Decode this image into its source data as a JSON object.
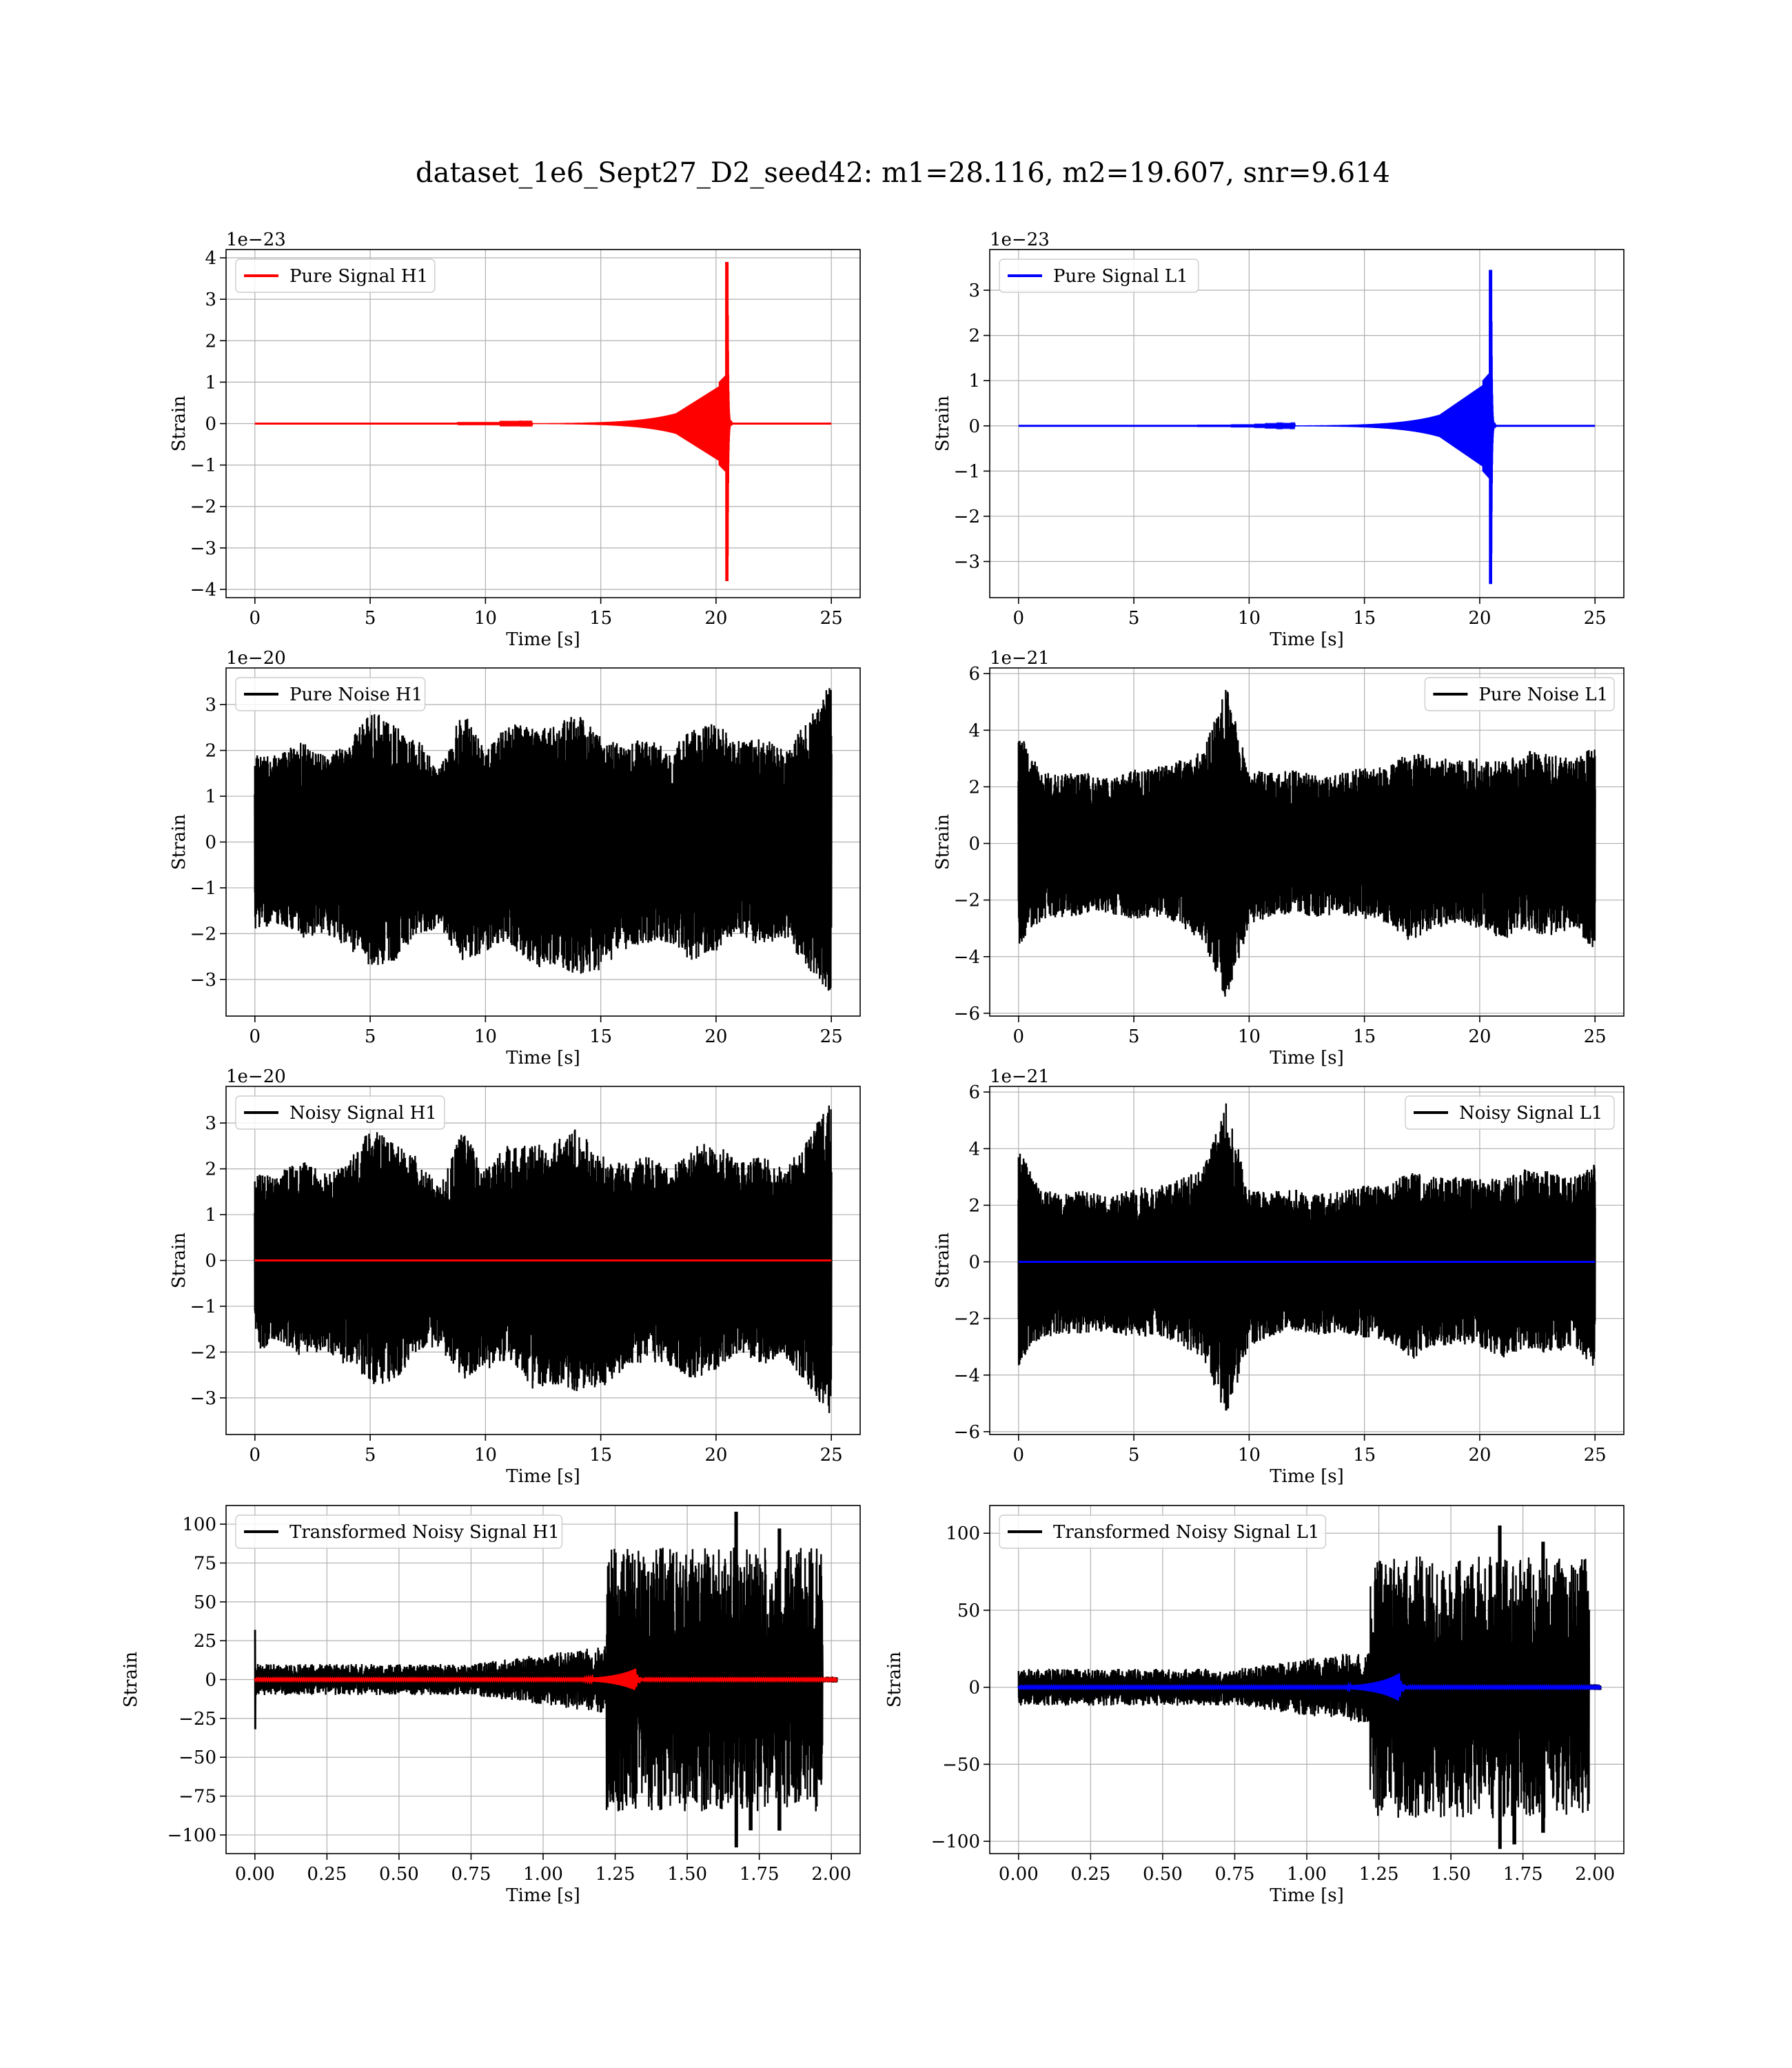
{
  "figure": {
    "title": "dataset_1e6_Sept27_D2_seed42: m1=28.116, m2=19.607, snr=9.614"
  },
  "colors": {
    "h1_signal": "#ff0000",
    "l1_signal": "#0000ff",
    "noise": "#000000",
    "grid": "#b0b0b0"
  },
  "chart_data": [
    {
      "id": "pure_signal_h1",
      "type": "line",
      "kind": "chirp",
      "row": 0,
      "col": 0,
      "title": "",
      "xlabel": "Time [s]",
      "ylabel": "Strain",
      "offset_text": "1e−23",
      "xlim": [
        -1.25,
        26.25
      ],
      "ylim": [
        -4.2,
        4.2
      ],
      "xticks": [
        0,
        5,
        10,
        15,
        20,
        25
      ],
      "yticks": [
        -4,
        -3,
        -2,
        -1,
        0,
        1,
        2,
        3,
        4
      ],
      "legend_position": "upper left",
      "series": [
        {
          "name": "Pure Signal H1",
          "color": "#ff0000",
          "x_range": [
            0,
            25
          ],
          "merger_time": 20.5,
          "peak_amplitude": 3.9,
          "trough_amplitude": -3.8
        }
      ]
    },
    {
      "id": "pure_signal_l1",
      "type": "line",
      "kind": "chirp",
      "row": 0,
      "col": 1,
      "title": "",
      "xlabel": "Time [s]",
      "ylabel": "Strain",
      "offset_text": "1e−23",
      "xlim": [
        -1.25,
        26.25
      ],
      "ylim": [
        -3.8,
        3.9
      ],
      "xticks": [
        0,
        5,
        10,
        15,
        20,
        25
      ],
      "yticks": [
        -3,
        -2,
        -1,
        0,
        1,
        2,
        3
      ],
      "legend_position": "upper left",
      "series": [
        {
          "name": "Pure Signal L1",
          "color": "#0000ff",
          "x_range": [
            0,
            25
          ],
          "merger_time": 20.5,
          "peak_amplitude": 3.45,
          "trough_amplitude": -3.5
        }
      ]
    },
    {
      "id": "pure_noise_h1",
      "type": "line",
      "kind": "noise",
      "row": 1,
      "col": 0,
      "title": "",
      "xlabel": "Time [s]",
      "ylabel": "Strain",
      "offset_text": "1e−20",
      "xlim": [
        -1.25,
        26.25
      ],
      "ylim": [
        -3.8,
        3.8
      ],
      "xticks": [
        0,
        5,
        10,
        15,
        20,
        25
      ],
      "yticks": [
        -3,
        -2,
        -1,
        0,
        1,
        2,
        3
      ],
      "legend_position": "upper left",
      "series": [
        {
          "name": "Pure Noise H1",
          "color": "#000000",
          "x_range": [
            0,
            25
          ],
          "min": -3.5,
          "max": 3.5,
          "envelope_max": [
            1.9,
            1.9,
            2.2,
            1.9,
            2.1,
            2.9,
            2.6,
            2.3,
            1.6,
            2.9,
            2.0,
            2.6,
            2.5,
            2.6,
            2.9,
            2.3,
            2.1,
            2.3,
            2.0,
            2.5,
            2.6,
            2.2,
            2.3,
            2.0,
            2.7,
            3.5
          ],
          "envelope_min": [
            -2.0,
            -1.8,
            -2.1,
            -2.0,
            -2.3,
            -2.7,
            -2.7,
            -2.0,
            -1.9,
            -2.6,
            -2.4,
            -2.2,
            -2.8,
            -2.7,
            -2.9,
            -2.8,
            -2.4,
            -2.2,
            -2.3,
            -2.6,
            -2.4,
            -2.0,
            -2.3,
            -2.1,
            -2.8,
            -3.4
          ]
        }
      ]
    },
    {
      "id": "pure_noise_l1",
      "type": "line",
      "kind": "noise",
      "row": 1,
      "col": 1,
      "title": "",
      "xlabel": "Time [s]",
      "ylabel": "Strain",
      "offset_text": "1e−21",
      "xlim": [
        -1.25,
        26.25
      ],
      "ylim": [
        -6.1,
        6.2
      ],
      "xticks": [
        0,
        5,
        10,
        15,
        20,
        25
      ],
      "yticks": [
        -6,
        -4,
        -2,
        0,
        2,
        4,
        6
      ],
      "legend_position": "upper right",
      "series": [
        {
          "name": "Pure Noise L1",
          "color": "#000000",
          "x_range": [
            0,
            25
          ],
          "min": -5.5,
          "max": 5.6,
          "envelope_max": [
            4.0,
            2.5,
            2.5,
            2.5,
            2.3,
            2.6,
            2.7,
            3.0,
            3.3,
            5.6,
            2.6,
            2.5,
            2.6,
            2.4,
            2.5,
            2.7,
            2.7,
            3.3,
            3.0,
            3.0,
            3.0,
            2.9,
            3.3,
            3.2,
            3.0,
            3.5
          ],
          "envelope_min": [
            -3.7,
            -2.7,
            -2.6,
            -2.5,
            -2.5,
            -2.7,
            -2.6,
            -2.9,
            -3.5,
            -5.5,
            -3.0,
            -2.6,
            -2.5,
            -2.6,
            -2.5,
            -2.7,
            -2.8,
            -3.5,
            -3.0,
            -2.9,
            -3.0,
            -3.4,
            -3.1,
            -3.3,
            -3.0,
            -3.8
          ]
        }
      ]
    },
    {
      "id": "noisy_signal_h1",
      "type": "line",
      "kind": "noise_with_line",
      "row": 2,
      "col": 0,
      "title": "",
      "xlabel": "Time [s]",
      "ylabel": "Strain",
      "offset_text": "1e−20",
      "xlim": [
        -1.25,
        26.25
      ],
      "ylim": [
        -3.8,
        3.8
      ],
      "xticks": [
        0,
        5,
        10,
        15,
        20,
        25
      ],
      "yticks": [
        -3,
        -2,
        -1,
        0,
        1,
        2,
        3
      ],
      "legend_position": "upper left",
      "series": [
        {
          "name": "Noisy Signal H1",
          "color": "#000000",
          "x_range": [
            0,
            25
          ],
          "min": -3.5,
          "max": 3.5,
          "envelope_max": [
            1.9,
            1.9,
            2.2,
            1.9,
            2.1,
            2.9,
            2.6,
            2.3,
            1.6,
            2.9,
            2.0,
            2.6,
            2.5,
            2.6,
            2.9,
            2.3,
            2.1,
            2.3,
            2.0,
            2.5,
            2.6,
            2.2,
            2.3,
            2.0,
            2.7,
            3.5
          ],
          "envelope_min": [
            -2.0,
            -1.8,
            -2.1,
            -2.0,
            -2.3,
            -2.7,
            -2.7,
            -2.0,
            -1.9,
            -2.6,
            -2.4,
            -2.2,
            -2.8,
            -2.7,
            -2.9,
            -2.8,
            -2.4,
            -2.2,
            -2.3,
            -2.6,
            -2.4,
            -2.0,
            -2.3,
            -2.1,
            -2.8,
            -3.4
          ]
        },
        {
          "name": "",
          "color": "#ff0000",
          "x_range": [
            0,
            25
          ],
          "value": 0
        }
      ]
    },
    {
      "id": "noisy_signal_l1",
      "type": "line",
      "kind": "noise_with_line",
      "row": 2,
      "col": 1,
      "title": "",
      "xlabel": "Time [s]",
      "ylabel": "Strain",
      "offset_text": "1e−21",
      "xlim": [
        -1.25,
        26.25
      ],
      "ylim": [
        -6.1,
        6.2
      ],
      "xticks": [
        0,
        5,
        10,
        15,
        20,
        25
      ],
      "yticks": [
        -6,
        -4,
        -2,
        0,
        2,
        4,
        6
      ],
      "legend_position": "upper right",
      "series": [
        {
          "name": "Noisy Signal L1",
          "color": "#000000",
          "x_range": [
            0,
            25
          ],
          "min": -5.5,
          "max": 5.6,
          "envelope_max": [
            4.0,
            2.5,
            2.5,
            2.5,
            2.3,
            2.6,
            2.7,
            3.0,
            3.3,
            5.6,
            2.6,
            2.5,
            2.6,
            2.4,
            2.5,
            2.7,
            2.7,
            3.3,
            3.0,
            3.0,
            3.0,
            2.9,
            3.3,
            3.2,
            3.0,
            3.5
          ],
          "envelope_min": [
            -3.7,
            -2.7,
            -2.6,
            -2.5,
            -2.5,
            -2.7,
            -2.6,
            -2.9,
            -3.5,
            -5.5,
            -3.0,
            -2.6,
            -2.5,
            -2.6,
            -2.5,
            -2.7,
            -2.8,
            -3.5,
            -3.0,
            -2.9,
            -3.0,
            -3.4,
            -3.1,
            -3.3,
            -3.0,
            -3.8
          ]
        },
        {
          "name": "",
          "color": "#0000ff",
          "x_range": [
            0,
            25
          ],
          "value": 0
        }
      ]
    },
    {
      "id": "transformed_noisy_signal_h1",
      "type": "line",
      "kind": "transformed",
      "row": 3,
      "col": 0,
      "title": "",
      "xlabel": "Time [s]",
      "ylabel": "Strain",
      "offset_text": "",
      "xlim": [
        -0.1,
        2.1
      ],
      "ylim": [
        -112,
        112
      ],
      "xticks": [
        "0.00",
        "0.25",
        "0.50",
        "0.75",
        "1.00",
        "1.25",
        "1.50",
        "1.75",
        "2.00"
      ],
      "yticks": [
        -100,
        -75,
        -50,
        -25,
        0,
        25,
        50,
        75,
        100
      ],
      "legend_position": "upper left",
      "series": [
        {
          "name": "Transformed Noisy Signal H1",
          "color": "#000000",
          "x_range": [
            0,
            2.02
          ],
          "min": -97,
          "max": 108,
          "low_level": 10,
          "rise_start": 0.75,
          "jump_time": 1.22,
          "high_level": 85,
          "end_time": 1.97
        },
        {
          "name": "",
          "color": "#ff0000",
          "x_range": [
            0,
            2.02
          ],
          "value": 0,
          "burst_time": 1.32,
          "burst_amplitude": 7
        }
      ]
    },
    {
      "id": "transformed_noisy_signal_l1",
      "type": "line",
      "kind": "transformed",
      "row": 3,
      "col": 1,
      "title": "",
      "xlabel": "Time [s]",
      "ylabel": "Strain",
      "offset_text": "",
      "xlim": [
        -0.1,
        2.1
      ],
      "ylim": [
        -108,
        118
      ],
      "xticks": [
        "0.00",
        "0.25",
        "0.50",
        "0.75",
        "1.00",
        "1.25",
        "1.50",
        "1.75",
        "2.00"
      ],
      "yticks": [
        -100,
        -50,
        0,
        50,
        100
      ],
      "legend_position": "upper left",
      "series": [
        {
          "name": "Transformed Noisy Signal L1",
          "color": "#000000",
          "x_range": [
            0,
            2.02
          ],
          "min": -102,
          "max": 105,
          "low_level": 12,
          "rise_start": 0.75,
          "jump_time": 1.22,
          "high_level": 85,
          "end_time": 1.98
        },
        {
          "name": "",
          "color": "#0000ff",
          "x_range": [
            0,
            2.02
          ],
          "value": 0,
          "burst_time": 1.32,
          "burst_amplitude": 9
        }
      ]
    }
  ]
}
